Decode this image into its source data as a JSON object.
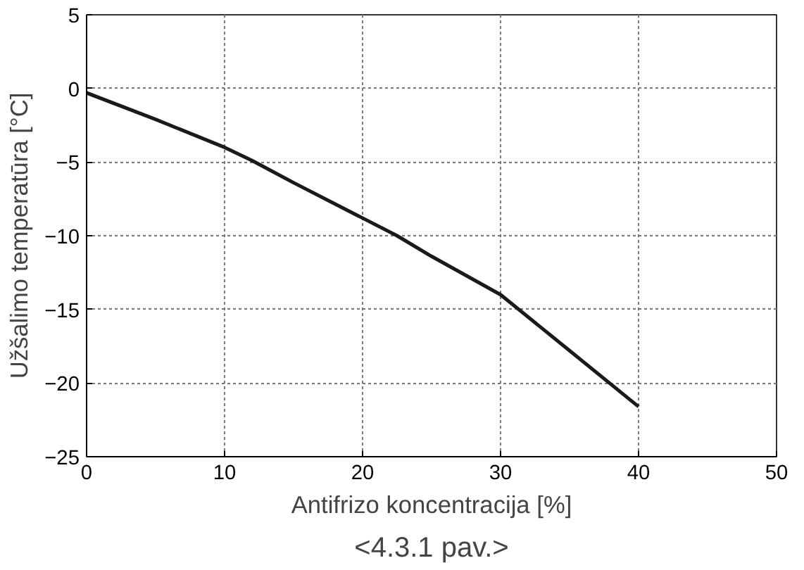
{
  "chart_data": {
    "type": "line",
    "xlabel": "Antifrizo koncentracija [%]",
    "ylabel": "Užšalimo temperatūra [°C]",
    "annotations": [
      "<4.3.1 pav.>"
    ],
    "x": [
      0,
      5,
      10,
      12,
      15,
      20,
      22.5,
      25,
      30,
      35,
      40
    ],
    "series": [
      {
        "color": "#1a1a1a",
        "values": [
          -0.3,
          -2.1,
          -4.0,
          -4.9,
          -6.4,
          -8.8,
          -10.0,
          -11.4,
          -14.0,
          -17.8,
          -21.6
        ]
      }
    ],
    "xlim": [
      0,
      50
    ],
    "xticks": [
      0,
      10,
      20,
      30,
      40,
      50
    ],
    "ylim": [
      -25,
      5
    ],
    "yticks": [
      -25,
      -20,
      -15,
      -10,
      -5,
      0,
      5
    ],
    "grid": true,
    "line_style": "solid",
    "marker": "none"
  }
}
